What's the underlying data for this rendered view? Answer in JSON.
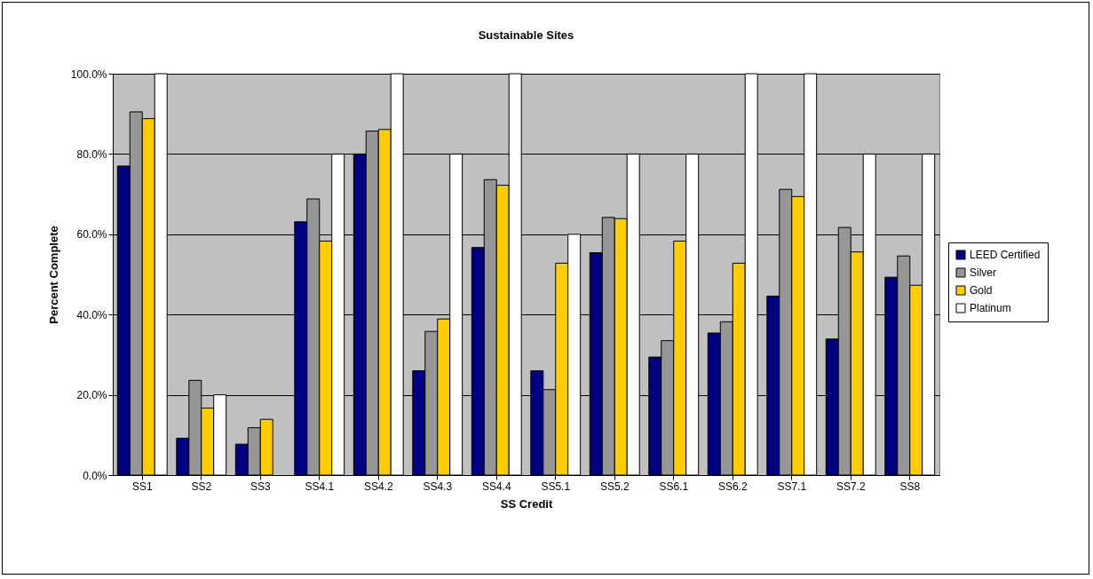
{
  "chart_data": {
    "type": "bar",
    "title": "Sustainable Sites",
    "xlabel": "SS Credit",
    "ylabel": "Percent Complete",
    "categories": [
      "SS1",
      "SS2",
      "SS3",
      "SS4.1",
      "SS4.2",
      "SS4.3",
      "SS4.4",
      "SS5.1",
      "SS5.2",
      "SS6.1",
      "SS6.2",
      "SS7.1",
      "SS7.2",
      "SS8"
    ],
    "series": [
      {
        "name": "LEED Certified",
        "color": "#000080",
        "values": [
          77,
          9.2,
          7.7,
          63.1,
          80,
          26,
          56.7,
          26,
          55.4,
          29.4,
          35.4,
          44.6,
          33.9,
          49.3
        ]
      },
      {
        "name": "Silver",
        "color": "#969696",
        "values": [
          90.5,
          23.6,
          11.8,
          68.8,
          85.7,
          35.8,
          73.6,
          21.3,
          64.2,
          33.5,
          38.2,
          71.2,
          61.7,
          54.6
        ]
      },
      {
        "name": "Gold",
        "color": "#ffcc00",
        "values": [
          88.8,
          16.7,
          13.9,
          58.3,
          86.1,
          38.9,
          72.2,
          52.8,
          63.9,
          58.3,
          52.8,
          69.4,
          55.6,
          47.3
        ]
      },
      {
        "name": "Platinum",
        "color": "#ffffff",
        "values": [
          100,
          20,
          null,
          80,
          100,
          80,
          100,
          60,
          80,
          80,
          100,
          100,
          80,
          80
        ]
      }
    ],
    "ylim": [
      0,
      100
    ],
    "yticks": [
      {
        "value": 0,
        "label": "0.0%"
      },
      {
        "value": 20,
        "label": "20.0%"
      },
      {
        "value": 40,
        "label": "40.0%"
      },
      {
        "value": 60,
        "label": "60.0%"
      },
      {
        "value": 80,
        "label": "80.0%"
      },
      {
        "value": 100,
        "label": "100.0%"
      }
    ],
    "grid": "y",
    "legend": "right"
  }
}
